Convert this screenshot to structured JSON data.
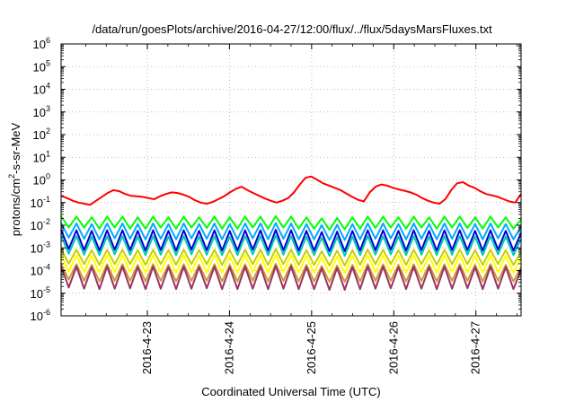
{
  "chart_data": {
    "type": "line",
    "title": "/data/run/goesPlots/archive/2016-04-27/12:00/flux/../flux/5daysMarsFluxes.txt",
    "xlabel": "Coordinated Universal Time (UTC)",
    "ylabel": "protons/cm²-s-sr-MeV",
    "ylabel_parts": {
      "before": "protons/cm",
      "sup": "2",
      "after": "-s-sr-MeV"
    },
    "yscale": "log",
    "ylim_exp": [
      -6,
      6
    ],
    "y_tick_base": "10",
    "y_tick_exponents": [
      "-6",
      "-5",
      "-4",
      "-3",
      "-2",
      "-1",
      "0",
      "1",
      "2",
      "3",
      "4",
      "5",
      "6"
    ],
    "xlim_days": [
      -1.05,
      4.55
    ],
    "x_ticks": [
      {
        "label": "2016-4-23",
        "day": 0
      },
      {
        "label": "2016-4-24",
        "day": 1
      },
      {
        "label": "2016-4-25",
        "day": 2
      },
      {
        "label": "2016-4-26",
        "day": 3
      },
      {
        "label": "2016-4-27",
        "day": 4
      }
    ],
    "grid": true,
    "series": [
      {
        "color": "#ff0000",
        "log10_values": [
          -0.7,
          -0.8,
          -0.92,
          -1.0,
          -1.05,
          -1.1,
          -0.92,
          -0.75,
          -0.58,
          -0.45,
          -0.5,
          -0.62,
          -0.7,
          -0.72,
          -0.75,
          -0.8,
          -0.85,
          -0.72,
          -0.62,
          -0.55,
          -0.58,
          -0.65,
          -0.75,
          -0.9,
          -1.0,
          -1.05,
          -0.98,
          -0.85,
          -0.72,
          -0.55,
          -0.4,
          -0.3,
          -0.45,
          -0.58,
          -0.7,
          -0.82,
          -0.92,
          -1.0,
          -0.92,
          -0.8,
          -0.55,
          -0.2,
          0.1,
          0.15,
          0.0,
          -0.15,
          -0.25,
          -0.35,
          -0.45,
          -0.6,
          -0.75,
          -0.88,
          -0.95,
          -0.55,
          -0.3,
          -0.2,
          -0.25,
          -0.35,
          -0.42,
          -0.48,
          -0.55,
          -0.65,
          -0.8,
          -0.92,
          -1.0,
          -1.05,
          -0.85,
          -0.45,
          -0.15,
          -0.1,
          -0.25,
          -0.35,
          -0.5,
          -0.62,
          -0.68,
          -0.75,
          -0.85,
          -0.95,
          -1.0,
          -0.62
        ]
      },
      {
        "color": "#00ff00",
        "log10_values": [
          -1.6,
          -2.1,
          -1.62,
          -2.1,
          -1.65,
          -2.15,
          -1.62,
          -2.1,
          -1.62,
          -2.15,
          -1.65,
          -2.15,
          -1.62,
          -2.1,
          -1.65,
          -2.15,
          -1.62,
          -2.1,
          -1.65,
          -2.12,
          -1.62,
          -2.15,
          -1.65,
          -2.15,
          -1.62,
          -2.1,
          -1.62,
          -2.15,
          -1.6,
          -2.1,
          -1.62,
          -2.15,
          -1.65,
          -2.15,
          -1.7,
          -2.2,
          -1.68,
          -2.18,
          -1.65,
          -2.15,
          -1.62,
          -2.12,
          -1.62,
          -2.1,
          -1.65,
          -2.15,
          -1.62,
          -2.1,
          -1.65,
          -2.15,
          -1.62,
          -2.1,
          -1.62,
          -2.12,
          -1.65,
          -2.15,
          -1.62,
          -2.1,
          -1.65,
          -2.15,
          -1.75
        ]
      },
      {
        "color": "#00aaff",
        "log10_values": [
          -1.9,
          -2.55,
          -1.92,
          -2.6,
          -1.95,
          -2.62,
          -1.92,
          -2.58,
          -1.92,
          -2.6,
          -1.95,
          -2.62,
          -1.92,
          -2.6,
          -1.95,
          -2.62,
          -1.92,
          -2.58,
          -1.95,
          -2.6,
          -1.92,
          -2.62,
          -1.95,
          -2.62,
          -1.92,
          -2.58,
          -1.92,
          -2.62,
          -1.9,
          -2.6,
          -1.92,
          -2.62,
          -1.95,
          -2.62,
          -2.0,
          -2.65,
          -1.98,
          -2.65,
          -1.95,
          -2.62,
          -1.92,
          -2.6,
          -1.92,
          -2.58,
          -1.95,
          -2.62,
          -1.92,
          -2.6,
          -1.95,
          -2.62,
          -1.92,
          -2.6,
          -1.92,
          -2.6,
          -1.95,
          -2.62,
          -1.92,
          -2.58,
          -1.95,
          -2.62,
          -2.05
        ]
      },
      {
        "color": "#0000dd",
        "log10_values": [
          -2.2,
          -3.05,
          -2.22,
          -3.1,
          -2.25,
          -3.12,
          -2.22,
          -3.08,
          -2.22,
          -3.1,
          -2.25,
          -3.12,
          -2.22,
          -3.1,
          -2.25,
          -3.12,
          -2.22,
          -3.08,
          -2.25,
          -3.1,
          -2.22,
          -3.12,
          -2.25,
          -3.12,
          -2.22,
          -3.08,
          -2.22,
          -3.12,
          -2.2,
          -3.1,
          -2.22,
          -3.12,
          -2.25,
          -3.12,
          -2.3,
          -3.15,
          -2.28,
          -3.15,
          -2.25,
          -3.12,
          -2.22,
          -3.1,
          -2.22,
          -3.08,
          -2.25,
          -3.12,
          -2.22,
          -3.1,
          -2.25,
          -3.12,
          -2.22,
          -3.1,
          -2.22,
          -3.1,
          -2.25,
          -3.12,
          -2.22,
          -3.08,
          -2.25,
          -3.12,
          -2.35
        ]
      },
      {
        "color": "#00ccaa",
        "log10_values": [
          -2.45,
          -3.25,
          -2.48,
          -3.3,
          -2.5,
          -3.32,
          -2.48,
          -3.28,
          -2.48,
          -3.3,
          -2.5,
          -3.32,
          -2.48,
          -3.3,
          -2.5,
          -3.32,
          -2.48,
          -3.28,
          -2.5,
          -3.3,
          -2.48,
          -3.32,
          -2.5,
          -3.32,
          -2.48,
          -3.28,
          -2.48,
          -3.32,
          -2.45,
          -3.3,
          -2.48,
          -3.32,
          -2.5,
          -3.32,
          -2.55,
          -3.35,
          -2.52,
          -3.35,
          -2.5,
          -3.32,
          -2.48,
          -3.3,
          -2.48,
          -3.28,
          -2.5,
          -3.32,
          -2.48,
          -3.3,
          -2.5,
          -3.32,
          -2.48,
          -3.3,
          -2.48,
          -3.3,
          -2.5,
          -3.32,
          -2.48,
          -3.28,
          -2.5,
          -3.32,
          -2.6
        ]
      },
      {
        "color": "#cccc00",
        "log10_values": [
          -3.05,
          -3.7,
          -3.08,
          -3.72,
          -3.1,
          -3.75,
          -3.08,
          -3.72,
          -3.08,
          -3.72,
          -3.1,
          -3.75,
          -3.08,
          -3.72,
          -3.1,
          -3.75,
          -3.08,
          -3.72,
          -3.1,
          -3.72,
          -3.08,
          -3.75,
          -3.1,
          -3.75,
          -3.08,
          -3.72,
          -3.08,
          -3.75,
          -3.05,
          -3.72,
          -3.08,
          -3.75,
          -3.1,
          -3.75,
          -3.15,
          -3.78,
          -3.12,
          -3.78,
          -3.1,
          -3.75,
          -3.08,
          -3.72,
          -3.08,
          -3.72,
          -3.1,
          -3.75,
          -3.08,
          -3.72,
          -3.1,
          -3.75,
          -3.08,
          -3.72,
          -3.08,
          -3.72,
          -3.1,
          -3.75,
          -3.08,
          -3.72,
          -3.1,
          -3.75,
          -3.2
        ]
      },
      {
        "color": "#ffff00",
        "log10_values": [
          -3.3,
          -4.05,
          -3.32,
          -4.08,
          -3.35,
          -4.1,
          -3.32,
          -4.08,
          -3.32,
          -4.08,
          -3.35,
          -4.1,
          -3.32,
          -4.08,
          -3.35,
          -4.1,
          -3.32,
          -4.08,
          -3.35,
          -4.08,
          -3.32,
          -4.1,
          -3.35,
          -4.1,
          -3.32,
          -4.08,
          -3.32,
          -4.1,
          -3.3,
          -4.08,
          -3.32,
          -4.1,
          -3.35,
          -4.1,
          -3.4,
          -4.12,
          -3.38,
          -4.12,
          -3.35,
          -4.1,
          -3.32,
          -4.08,
          -3.32,
          -4.08,
          -3.35,
          -4.1,
          -3.32,
          -4.08,
          -3.35,
          -4.1,
          -3.32,
          -4.08,
          -3.32,
          -4.08,
          -3.35,
          -4.1,
          -3.32,
          -4.08,
          -3.35,
          -4.1,
          -3.45
        ]
      },
      {
        "color": "#cc9933",
        "log10_values": [
          -3.7,
          -4.4,
          -3.72,
          -4.45,
          -3.75,
          -4.48,
          -3.72,
          -4.45,
          -3.72,
          -4.45,
          -3.75,
          -4.48,
          -3.72,
          -4.45,
          -3.75,
          -4.48,
          -3.72,
          -4.45,
          -3.75,
          -4.45,
          -3.72,
          -4.48,
          -3.75,
          -4.48,
          -3.72,
          -4.45,
          -3.72,
          -4.48,
          -3.7,
          -4.45,
          -3.72,
          -4.48,
          -3.75,
          -4.48,
          -3.8,
          -4.5,
          -3.78,
          -4.5,
          -3.75,
          -4.48,
          -3.72,
          -4.45,
          -3.72,
          -4.45,
          -3.75,
          -4.48,
          -3.72,
          -4.45,
          -3.75,
          -4.48,
          -3.72,
          -4.45,
          -3.72,
          -4.45,
          -3.75,
          -4.48,
          -3.72,
          -4.45,
          -3.75,
          -4.48,
          -3.85
        ]
      },
      {
        "color": "#993366",
        "log10_values": [
          -3.8,
          -4.75,
          -3.82,
          -4.8,
          -3.85,
          -4.82,
          -3.82,
          -4.8,
          -3.82,
          -4.78,
          -3.85,
          -4.82,
          -3.82,
          -4.8,
          -3.85,
          -4.82,
          -3.82,
          -4.8,
          -3.85,
          -4.78,
          -3.82,
          -4.82,
          -3.85,
          -4.82,
          -3.82,
          -4.8,
          -3.82,
          -4.82,
          -3.8,
          -4.8,
          -3.82,
          -4.82,
          -3.85,
          -4.82,
          -3.9,
          -4.85,
          -3.88,
          -4.85,
          -3.85,
          -4.82,
          -3.82,
          -4.8,
          -3.82,
          -4.78,
          -3.85,
          -4.82,
          -3.82,
          -4.8,
          -3.85,
          -4.82,
          -3.82,
          -4.8,
          -3.82,
          -4.78,
          -3.85,
          -4.82,
          -3.82,
          -4.8,
          -3.85,
          -4.82,
          -3.95
        ]
      }
    ]
  }
}
